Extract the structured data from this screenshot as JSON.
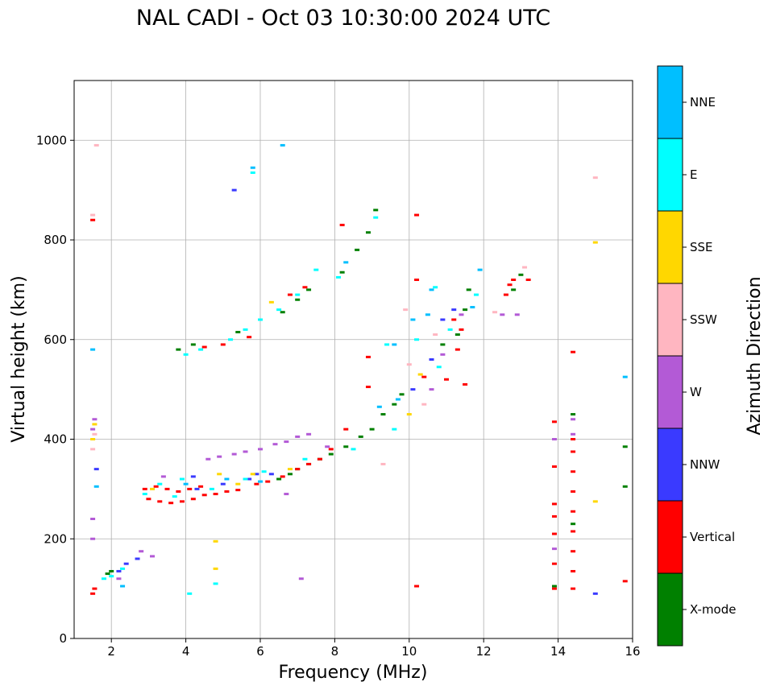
{
  "chart_data": {
    "type": "scatter",
    "title": "NAL CADI - Oct 03 10:30:00 2024 UTC",
    "xlabel": "Frequency (MHz)",
    "ylabel": "Virtual height (km)",
    "xlim": [
      1,
      16
    ],
    "ylim": [
      0,
      1120
    ],
    "xticks": [
      2,
      4,
      6,
      8,
      10,
      12,
      14,
      16
    ],
    "yticks": [
      0,
      200,
      400,
      600,
      800,
      1000
    ],
    "grid": true,
    "colorbar": {
      "label": "Azimuth Direction",
      "categories": [
        {
          "name": "X-mode",
          "color": "#008000"
        },
        {
          "name": "Vertical",
          "color": "#ff0000"
        },
        {
          "name": "NNW",
          "color": "#3a3aff"
        },
        {
          "name": "W",
          "color": "#b35ad6"
        },
        {
          "name": "SSW",
          "color": "#ffb6c1"
        },
        {
          "name": "SSE",
          "color": "#ffd700"
        },
        {
          "name": "E",
          "color": "#00ffff"
        },
        {
          "name": "NNE",
          "color": "#00bfff"
        }
      ]
    },
    "series": [
      {
        "name": "X-mode",
        "points": [
          [
            1.9,
            130
          ],
          [
            2.0,
            135
          ],
          [
            6.5,
            320
          ],
          [
            6.8,
            330
          ],
          [
            7.0,
            340
          ],
          [
            7.3,
            350
          ],
          [
            7.6,
            360
          ],
          [
            7.9,
            370
          ],
          [
            8.3,
            385
          ],
          [
            8.7,
            405
          ],
          [
            9.0,
            420
          ],
          [
            9.3,
            450
          ],
          [
            9.6,
            470
          ],
          [
            9.8,
            490
          ],
          [
            10.9,
            590
          ],
          [
            11.3,
            610
          ],
          [
            11.5,
            660
          ],
          [
            11.6,
            700
          ],
          [
            12.8,
            700
          ],
          [
            13.0,
            730
          ],
          [
            14.4,
            450
          ],
          [
            14.4,
            230
          ],
          [
            13.9,
            105
          ],
          [
            15.8,
            385
          ],
          [
            15.8,
            305
          ],
          [
            8.9,
            815
          ],
          [
            8.6,
            780
          ],
          [
            8.2,
            735
          ],
          [
            9.1,
            860
          ],
          [
            7.3,
            700
          ],
          [
            7.0,
            680
          ],
          [
            6.6,
            655
          ],
          [
            5.4,
            615
          ],
          [
            4.2,
            590
          ],
          [
            3.8,
            580
          ]
        ]
      },
      {
        "name": "Vertical",
        "points": [
          [
            1.5,
            90
          ],
          [
            1.55,
            100
          ],
          [
            3.0,
            280
          ],
          [
            3.3,
            275
          ],
          [
            3.6,
            272
          ],
          [
            3.9,
            275
          ],
          [
            4.2,
            280
          ],
          [
            4.5,
            288
          ],
          [
            4.8,
            290
          ],
          [
            5.1,
            295
          ],
          [
            5.4,
            298
          ],
          [
            2.9,
            300
          ],
          [
            3.2,
            305
          ],
          [
            3.5,
            300
          ],
          [
            3.8,
            295
          ],
          [
            4.1,
            300
          ],
          [
            4.4,
            305
          ],
          [
            5.9,
            310
          ],
          [
            6.2,
            315
          ],
          [
            6.6,
            325
          ],
          [
            7.0,
            340
          ],
          [
            7.3,
            350
          ],
          [
            7.6,
            360
          ],
          [
            7.9,
            380
          ],
          [
            8.3,
            420
          ],
          [
            10.2,
            850
          ],
          [
            10.2,
            720
          ],
          [
            10.2,
            105
          ],
          [
            11.2,
            640
          ],
          [
            11.4,
            620
          ],
          [
            11.3,
            580
          ],
          [
            11.0,
            520
          ],
          [
            11.5,
            510
          ],
          [
            12.6,
            690
          ],
          [
            12.7,
            710
          ],
          [
            12.8,
            720
          ],
          [
            13.2,
            720
          ],
          [
            13.9,
            435
          ],
          [
            13.9,
            345
          ],
          [
            13.9,
            270
          ],
          [
            13.9,
            245
          ],
          [
            13.9,
            210
          ],
          [
            13.9,
            150
          ],
          [
            13.9,
            100
          ],
          [
            14.4,
            400
          ],
          [
            14.4,
            375
          ],
          [
            14.4,
            335
          ],
          [
            14.4,
            295
          ],
          [
            14.4,
            255
          ],
          [
            14.4,
            215
          ],
          [
            14.4,
            175
          ],
          [
            14.4,
            135
          ],
          [
            14.4,
            100
          ],
          [
            14.4,
            575
          ],
          [
            15.8,
            115
          ],
          [
            8.9,
            565
          ],
          [
            8.9,
            505
          ],
          [
            8.2,
            830
          ],
          [
            10.4,
            525
          ],
          [
            5.0,
            590
          ],
          [
            4.5,
            585
          ],
          [
            6.8,
            690
          ],
          [
            7.2,
            705
          ],
          [
            5.7,
            605
          ],
          [
            1.5,
            840
          ]
        ]
      },
      {
        "name": "NNW",
        "points": [
          [
            2.2,
            135
          ],
          [
            2.4,
            150
          ],
          [
            2.7,
            160
          ],
          [
            4.3,
            300
          ],
          [
            5.0,
            310
          ],
          [
            5.7,
            320
          ],
          [
            6.3,
            330
          ],
          [
            10.1,
            500
          ],
          [
            10.6,
            560
          ],
          [
            10.9,
            640
          ],
          [
            11.2,
            660
          ],
          [
            15.0,
            90
          ],
          [
            1.6,
            340
          ],
          [
            5.3,
            900
          ],
          [
            4.2,
            325
          ],
          [
            5.9,
            330
          ]
        ]
      },
      {
        "name": "W",
        "points": [
          [
            1.5,
            200
          ],
          [
            1.5,
            240
          ],
          [
            1.5,
            420
          ],
          [
            1.55,
            440
          ],
          [
            2.2,
            120
          ],
          [
            2.8,
            175
          ],
          [
            3.1,
            165
          ],
          [
            4.9,
            365
          ],
          [
            5.3,
            370
          ],
          [
            5.6,
            375
          ],
          [
            6.0,
            380
          ],
          [
            6.4,
            390
          ],
          [
            6.7,
            395
          ],
          [
            7.0,
            405
          ],
          [
            7.3,
            410
          ],
          [
            7.1,
            120
          ],
          [
            10.6,
            500
          ],
          [
            10.9,
            570
          ],
          [
            11.4,
            650
          ],
          [
            12.5,
            650
          ],
          [
            12.9,
            650
          ],
          [
            13.9,
            400
          ],
          [
            13.9,
            180
          ],
          [
            14.4,
            410
          ],
          [
            14.4,
            440
          ],
          [
            6.7,
            290
          ],
          [
            3.4,
            325
          ],
          [
            4.6,
            360
          ],
          [
            7.8,
            385
          ]
        ]
      },
      {
        "name": "SSW",
        "points": [
          [
            1.5,
            850
          ],
          [
            1.5,
            380
          ],
          [
            1.55,
            410
          ],
          [
            1.6,
            990
          ],
          [
            9.9,
            660
          ],
          [
            10.4,
            470
          ],
          [
            10.7,
            610
          ],
          [
            12.3,
            655
          ],
          [
            13.1,
            745
          ],
          [
            15.0,
            925
          ],
          [
            9.3,
            350
          ],
          [
            10.0,
            550
          ]
        ]
      },
      {
        "name": "SSE",
        "points": [
          [
            1.5,
            400
          ],
          [
            1.55,
            430
          ],
          [
            4.8,
            195
          ],
          [
            4.8,
            140
          ],
          [
            6.3,
            675
          ],
          [
            10.0,
            450
          ],
          [
            10.3,
            530
          ],
          [
            15.0,
            795
          ],
          [
            15.0,
            275
          ],
          [
            3.1,
            300
          ],
          [
            5.4,
            310
          ],
          [
            6.8,
            340
          ],
          [
            4.9,
            330
          ],
          [
            5.8,
            330
          ]
        ]
      },
      {
        "name": "E",
        "points": [
          [
            1.8,
            120
          ],
          [
            2.0,
            125
          ],
          [
            2.3,
            140
          ],
          [
            4.1,
            90
          ],
          [
            4.8,
            110
          ],
          [
            4.0,
            570
          ],
          [
            4.4,
            580
          ],
          [
            5.2,
            600
          ],
          [
            5.6,
            620
          ],
          [
            6.0,
            640
          ],
          [
            6.5,
            660
          ],
          [
            7.0,
            690
          ],
          [
            7.5,
            740
          ],
          [
            8.1,
            725
          ],
          [
            9.1,
            845
          ],
          [
            10.7,
            705
          ],
          [
            11.1,
            620
          ],
          [
            11.8,
            690
          ],
          [
            5.8,
            935
          ],
          [
            9.4,
            590
          ],
          [
            10.2,
            600
          ],
          [
            10.8,
            545
          ],
          [
            3.3,
            310
          ],
          [
            3.9,
            320
          ],
          [
            4.7,
            300
          ],
          [
            5.6,
            320
          ],
          [
            6.1,
            335
          ],
          [
            7.2,
            360
          ],
          [
            8.5,
            380
          ],
          [
            9.6,
            420
          ],
          [
            2.9,
            290
          ],
          [
            3.7,
            285
          ]
        ]
      },
      {
        "name": "NNE",
        "points": [
          [
            1.5,
            580
          ],
          [
            1.6,
            305
          ],
          [
            2.3,
            105
          ],
          [
            5.8,
            945
          ],
          [
            6.6,
            990
          ],
          [
            8.3,
            755
          ],
          [
            9.6,
            590
          ],
          [
            10.1,
            640
          ],
          [
            10.6,
            700
          ],
          [
            11.9,
            740
          ],
          [
            15.8,
            525
          ],
          [
            9.2,
            465
          ],
          [
            9.7,
            480
          ],
          [
            10.5,
            650
          ],
          [
            11.7,
            665
          ],
          [
            4.0,
            310
          ],
          [
            5.1,
            320
          ],
          [
            6.0,
            315
          ]
        ]
      }
    ]
  }
}
